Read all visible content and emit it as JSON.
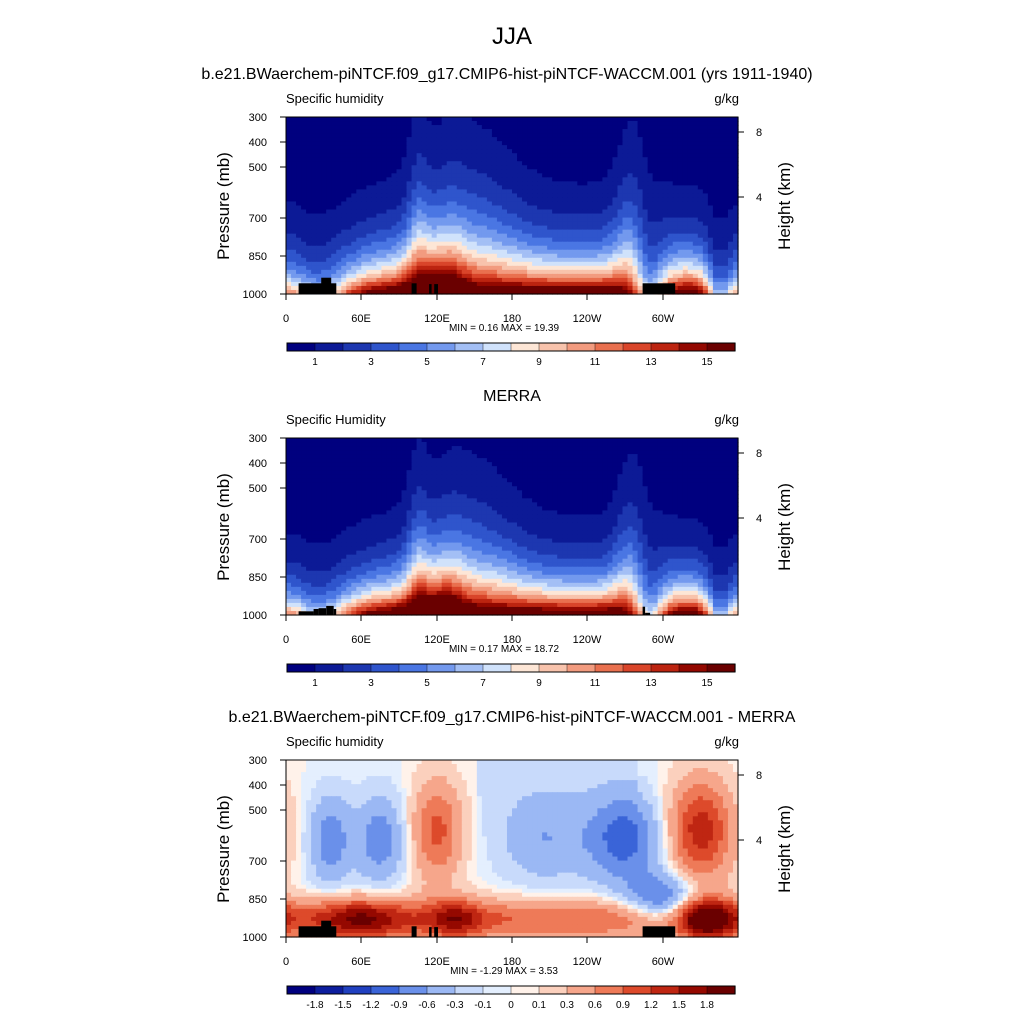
{
  "figure": {
    "title": "JJA",
    "colormap_main": [
      "#00007f",
      "#0c1a96",
      "#1d37b0",
      "#2f55cc",
      "#4a76e3",
      "#7399ee",
      "#a3bff5",
      "#d0e2fb",
      "#fde6d6",
      "#f8c3ac",
      "#f29b7f",
      "#e9704f",
      "#d9452a",
      "#bc2410",
      "#930800",
      "#6a0000"
    ],
    "colormap_diff": [
      "#00007f",
      "#0d1e9e",
      "#2040c0",
      "#3a64d8",
      "#6a90ea",
      "#9bb8f4",
      "#c8dafb",
      "#e4effe",
      "#fff2ea",
      "#fbd0bd",
      "#f6a68b",
      "#ee7a58",
      "#dd4a2b",
      "#bf2612",
      "#950900",
      "#6a0000"
    ]
  },
  "panels": [
    {
      "caption": "b.e21.BWaerchem-piNTCF.f09_g17.CMIP6-hist-piNTCF-WACCM.001 (yrs 1911-1940)",
      "left_label": "Specific humidity",
      "units": "g/kg",
      "y_label": "Pressure (mb)",
      "y2_label": "Height (km)",
      "y_ticks": [
        "300",
        "400",
        "500",
        "700",
        "850",
        "1000"
      ],
      "y2_ticks": [
        "8",
        "4"
      ],
      "x_ticks": [
        "0",
        "60E",
        "120E",
        "180",
        "120W",
        "60W"
      ],
      "minmax": "MIN =   0.16  MAX =  19.39",
      "colorbar_labels": [
        "1",
        "3",
        "5",
        "7",
        "9",
        "11",
        "13",
        "15"
      ]
    },
    {
      "caption": "MERRA",
      "left_label": "Specific Humidity",
      "units": "g/kg",
      "y_label": "Pressure (mb)",
      "y2_label": "Height (km)",
      "y_ticks": [
        "300",
        "400",
        "500",
        "700",
        "850",
        "1000"
      ],
      "y2_ticks": [
        "8",
        "4"
      ],
      "x_ticks": [
        "0",
        "60E",
        "120E",
        "180",
        "120W",
        "60W"
      ],
      "minmax": "MIN =   0.17  MAX =  18.72",
      "colorbar_labels": [
        "1",
        "3",
        "5",
        "7",
        "9",
        "11",
        "13",
        "15"
      ]
    },
    {
      "caption": "b.e21.BWaerchem-piNTCF.f09_g17.CMIP6-hist-piNTCF-WACCM.001 - MERRA",
      "left_label": "Specific humidity",
      "units": "g/kg",
      "y_label": "Pressure (mb)",
      "y2_label": "Height (km)",
      "y_ticks": [
        "300",
        "400",
        "500",
        "700",
        "850",
        "1000"
      ],
      "y2_ticks": [
        "8",
        "4"
      ],
      "x_ticks": [
        "0",
        "60E",
        "120E",
        "180",
        "120W",
        "60W"
      ],
      "minmax": "MIN =  -1.29  MAX =   3.53",
      "colorbar_labels": [
        "-1.8",
        "-1.5",
        "-1.2",
        "-0.9",
        "-0.6",
        "-0.3",
        "-0.1",
        "0",
        "0.1",
        "0.3",
        "0.6",
        "0.9",
        "1.2",
        "1.5",
        "1.8"
      ]
    }
  ],
  "chart_data": [
    {
      "type": "heatmap",
      "title": "b.e21.BWaerchem-piNTCF.f09_g17.CMIP6-hist-piNTCF-WACCM.001 (yrs 1911-1940)",
      "variable": "Specific humidity",
      "units": "g/kg",
      "xlabel": "",
      "ylabel": "Pressure (mb)",
      "y2label": "Height (km)",
      "xlim": [
        0,
        360
      ],
      "ylim": [
        1000,
        300
      ],
      "x_tick_values": [
        0,
        60,
        120,
        180,
        240,
        300
      ],
      "y_tick_values": [
        300,
        400,
        500,
        700,
        850,
        1000
      ],
      "color_levels": [
        1,
        2,
        3,
        4,
        5,
        6,
        7,
        8,
        9,
        10,
        11,
        12,
        13,
        14,
        15
      ],
      "min": 0.16,
      "max": 19.39
    },
    {
      "type": "heatmap",
      "title": "MERRA",
      "variable": "Specific Humidity",
      "units": "g/kg",
      "xlabel": "",
      "ylabel": "Pressure (mb)",
      "y2label": "Height (km)",
      "xlim": [
        0,
        360
      ],
      "ylim": [
        1000,
        300
      ],
      "x_tick_values": [
        0,
        60,
        120,
        180,
        240,
        300
      ],
      "y_tick_values": [
        300,
        400,
        500,
        700,
        850,
        1000
      ],
      "color_levels": [
        1,
        2,
        3,
        4,
        5,
        6,
        7,
        8,
        9,
        10,
        11,
        12,
        13,
        14,
        15
      ],
      "min": 0.17,
      "max": 18.72
    },
    {
      "type": "heatmap",
      "title": "b.e21.BWaerchem-piNTCF.f09_g17.CMIP6-hist-piNTCF-WACCM.001 - MERRA",
      "variable": "Specific humidity",
      "units": "g/kg",
      "xlabel": "",
      "ylabel": "Pressure (mb)",
      "y2label": "Height (km)",
      "xlim": [
        0,
        360
      ],
      "ylim": [
        1000,
        300
      ],
      "x_tick_values": [
        0,
        60,
        120,
        180,
        240,
        300
      ],
      "y_tick_values": [
        300,
        400,
        500,
        700,
        850,
        1000
      ],
      "color_levels": [
        -1.8,
        -1.5,
        -1.2,
        -0.9,
        -0.6,
        -0.3,
        -0.1,
        0,
        0.1,
        0.3,
        0.6,
        0.9,
        1.2,
        1.5,
        1.8
      ],
      "min": -1.29,
      "max": 3.53
    }
  ]
}
